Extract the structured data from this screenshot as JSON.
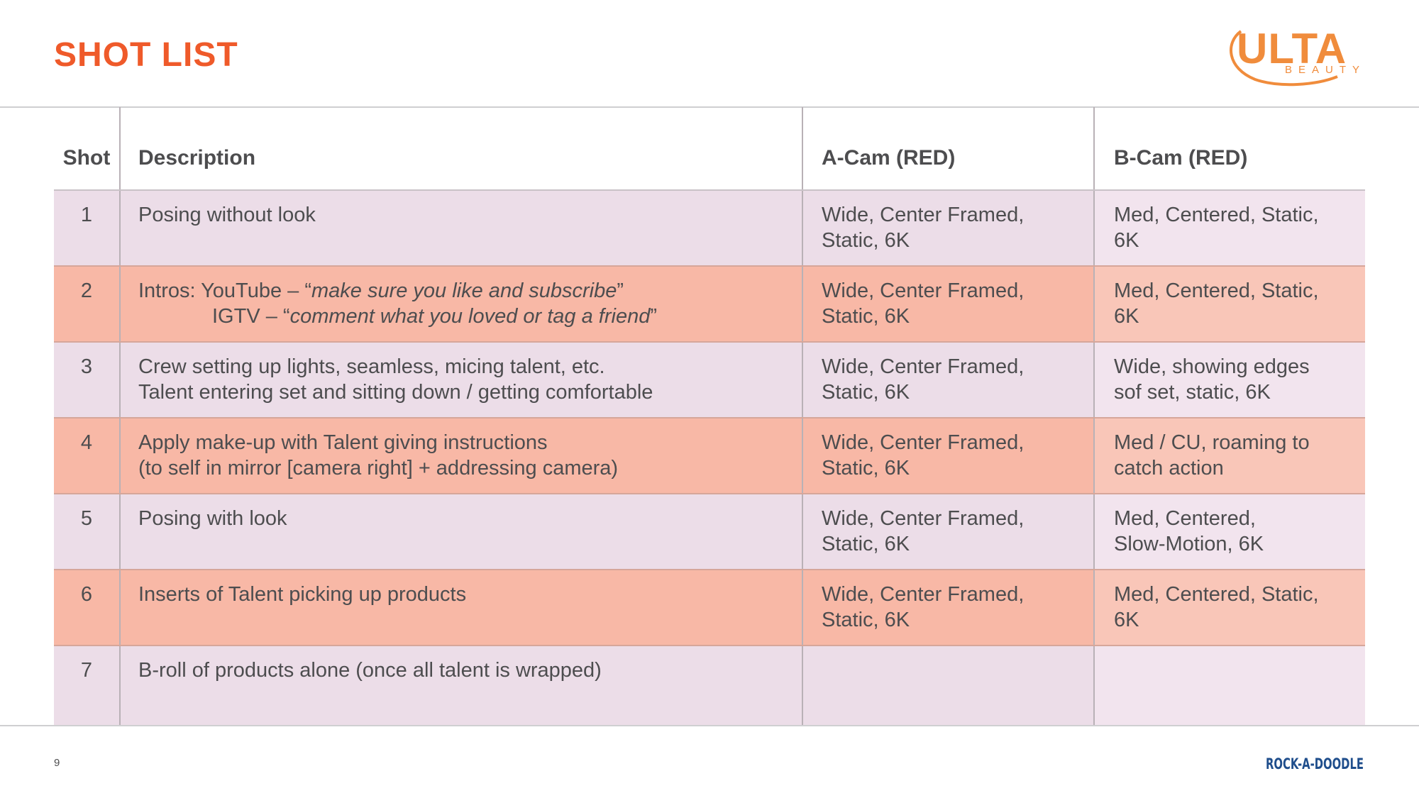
{
  "page": {
    "title": "SHOT LIST",
    "page_number": "9"
  },
  "brand": {
    "logo_text": "ULTA",
    "logo_subtext": "BEAUTY",
    "footer_logo_text": "ROCK-A-DOODLE",
    "accent_color": "#ef5a2a",
    "logo_color": "#f08c3c",
    "footer_logo_color": "#1f4e8c"
  },
  "table": {
    "headers": [
      "Shot",
      "Description",
      "A-Cam (RED)",
      "B-Cam (RED)"
    ],
    "rows": [
      {
        "shot": "1",
        "description_lines": [
          "Posing without look"
        ],
        "a_cam_lines": [
          "Wide, Center Framed,",
          "Static, 6K"
        ],
        "b_cam_lines": [
          "Med, Centered, Static,",
          "6K"
        ]
      },
      {
        "shot": "2",
        "intro_youtube_prefix": "Intros: YouTube – “",
        "intro_youtube_quote": "make sure you like and subscribe",
        "intro_youtube_suffix": "”",
        "intro_igtv_prefix": "IGTV – “",
        "intro_igtv_quote": "comment what you loved or tag a friend",
        "intro_igtv_suffix": "”",
        "a_cam_lines": [
          "Wide, Center Framed,",
          "Static, 6K"
        ],
        "b_cam_lines": [
          "Med, Centered, Static,",
          "6K"
        ]
      },
      {
        "shot": "3",
        "description_lines": [
          "Crew setting up lights, seamless, micing talent, etc.",
          "Talent entering set and sitting down / getting comfortable"
        ],
        "a_cam_lines": [
          "Wide, Center Framed,",
          "Static, 6K"
        ],
        "b_cam_lines": [
          "Wide, showing edges",
          "sof set, static, 6K"
        ]
      },
      {
        "shot": "4",
        "description_lines": [
          "Apply make-up with Talent giving instructions",
          "(to self in mirror [camera right] + addressing camera)"
        ],
        "a_cam_lines": [
          "Wide, Center Framed,",
          "Static, 6K"
        ],
        "b_cam_lines": [
          "Med / CU, roaming to",
          "catch action"
        ]
      },
      {
        "shot": "5",
        "description_lines": [
          "Posing with look"
        ],
        "a_cam_lines": [
          "Wide, Center Framed,",
          "Static, 6K"
        ],
        "b_cam_lines": [
          "Med, Centered,",
          "Slow-Motion, 6K"
        ]
      },
      {
        "shot": "6",
        "description_lines": [
          "Inserts of Talent picking up products"
        ],
        "a_cam_lines": [
          "Wide, Center Framed,",
          "Static, 6K"
        ],
        "b_cam_lines": [
          "Med, Centered, Static,",
          "6K"
        ]
      },
      {
        "shot": "7",
        "description_lines": [
          "B-roll of products alone (once all talent is wrapped)"
        ],
        "a_cam_lines": [],
        "b_cam_lines": []
      }
    ]
  }
}
